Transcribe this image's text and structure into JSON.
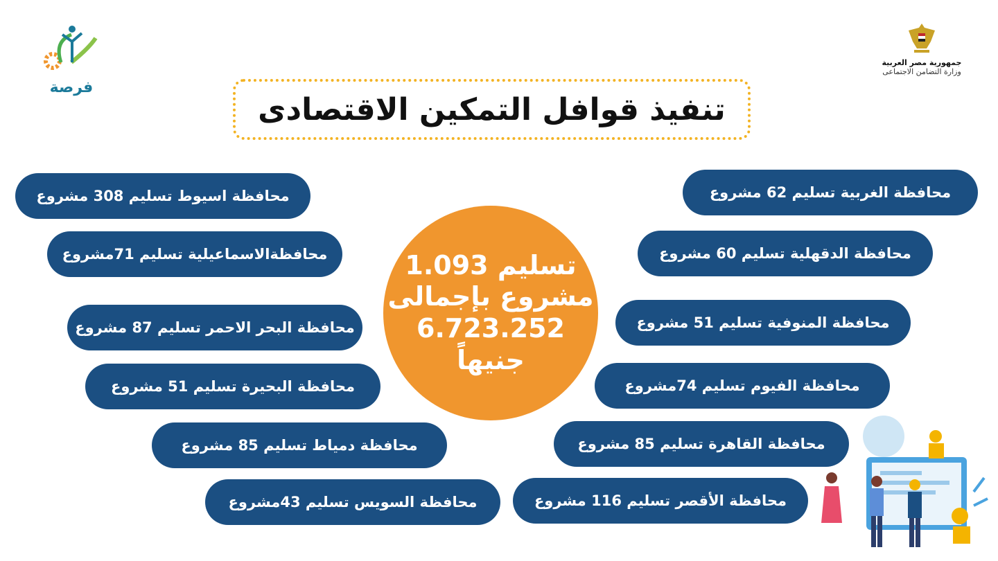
{
  "header": {
    "title": "تنفيذ قوافل التمكين الاقتصادى",
    "gov_logo": {
      "line1": "جمهورية مصر العربية",
      "line2": "وزارة التضامن الاجتماعى"
    },
    "forsa_logo": {
      "name": "فرصة"
    }
  },
  "summary": {
    "line1": "تسليم 1.093",
    "line2": "مشروع  بإجمالى",
    "line3": "6.723.252",
    "line4": "جنيهاً"
  },
  "left_items": [
    "محافظة اسيوط تسليم 308 مشروع",
    "محافظةالاسماعيلية تسليم 71مشروع",
    "محافظة البحر الاحمر تسليم 87 مشروع",
    "محافظة البحيرة تسليم 51 مشروع",
    "محافظة دمياط تسليم 85 مشروع",
    "محافظة السويس تسليم 43مشروع"
  ],
  "right_items": [
    "محافظة الغربية تسليم 62 مشروع",
    "محافظة الدقهلية تسليم 60 مشروع",
    "محافظة المنوفية  تسليم 51 مشروع",
    "محافظة الفيوم  تسليم 74مشروع",
    "محافظة القاهرة تسليم 85 مشروع",
    "محافظة الأقصر تسليم 116 مشروع"
  ],
  "colors": {
    "pill": "#1b4f82",
    "circle": "#f0962e",
    "title_border": "#f3b323"
  }
}
